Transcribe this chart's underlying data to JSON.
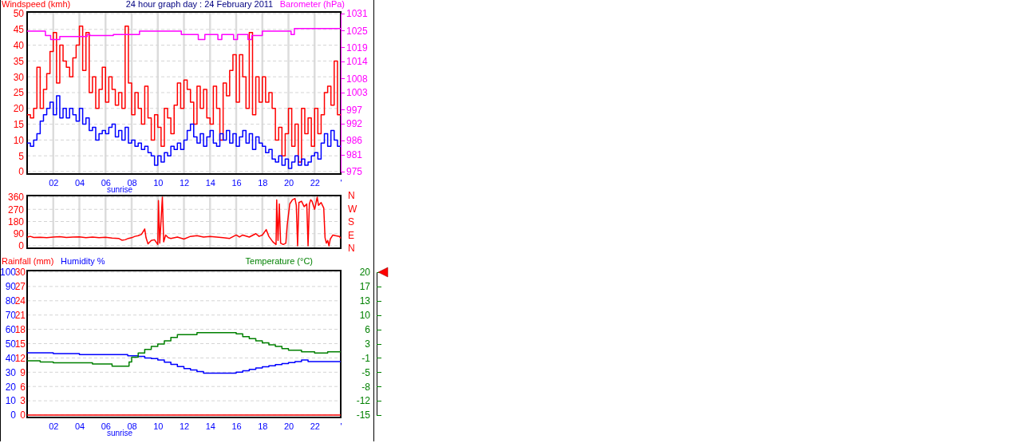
{
  "chart_data": [
    {
      "type": "step",
      "title": "24 hour graph day : 24 February 2011",
      "ylabel": "Windspeed (kmh)",
      "y2label": "Barometer (hPa)",
      "x": [
        0,
        0.25,
        0.5,
        0.75,
        1,
        1.25,
        1.5,
        1.75,
        2,
        2.25,
        2.5,
        2.75,
        3,
        3.25,
        3.5,
        3.75,
        4,
        4.25,
        4.5,
        4.75,
        5,
        5.25,
        5.5,
        5.75,
        6,
        6.25,
        6.5,
        6.75,
        7,
        7.25,
        7.5,
        7.75,
        8,
        8.25,
        8.5,
        8.75,
        9,
        9.25,
        9.5,
        9.75,
        10,
        10.25,
        10.5,
        10.75,
        11,
        11.25,
        11.5,
        11.75,
        12,
        12.25,
        12.5,
        12.75,
        13,
        13.25,
        13.5,
        13.75,
        14,
        14.25,
        14.5,
        14.75,
        15,
        15.25,
        15.5,
        15.75,
        16,
        16.25,
        16.5,
        16.75,
        17,
        17.25,
        17.5,
        17.75,
        18,
        18.25,
        18.5,
        18.75,
        19,
        19.25,
        19.5,
        19.75,
        20,
        20.25,
        20.5,
        20.75,
        21,
        21.25,
        21.5,
        21.75,
        22,
        22.25,
        22.5,
        22.75,
        23,
        23.25,
        23.5,
        23.75,
        24
      ],
      "series": [
        {
          "color": "#ff0000",
          "values": [
            18,
            17,
            20,
            33,
            20,
            26,
            31,
            38,
            44,
            28,
            40,
            35,
            33,
            30,
            36,
            40,
            46,
            32,
            44,
            25,
            30,
            20,
            26,
            33,
            22,
            30,
            26,
            21,
            25,
            20,
            46,
            28,
            18,
            25,
            20,
            15,
            27,
            17,
            10,
            18,
            14,
            8,
            20,
            17,
            12,
            21,
            28,
            20,
            29,
            26,
            22,
            15,
            27,
            20,
            26,
            17,
            15,
            27,
            20,
            10,
            28,
            24,
            32,
            37,
            22,
            37,
            30,
            20,
            44,
            18,
            30,
            22,
            30,
            22,
            25,
            20,
            10,
            14,
            5,
            12,
            20,
            8,
            15,
            3,
            20,
            12,
            17,
            8,
            20,
            12,
            18,
            25,
            27,
            21,
            35,
            18,
            18
          ]
        },
        {
          "color": "#0000ff",
          "values": [
            9,
            8,
            10,
            12,
            16,
            18,
            20,
            22,
            18,
            24,
            17,
            20,
            17,
            20,
            18,
            16,
            20,
            15,
            17,
            13,
            14,
            10,
            12,
            13,
            12,
            14,
            15,
            11,
            13,
            10,
            14,
            9,
            10,
            8,
            9,
            7,
            8,
            6,
            5,
            2,
            5,
            3,
            6,
            5,
            8,
            7,
            9,
            7,
            10,
            13,
            15,
            11,
            9,
            12,
            8,
            11,
            13,
            9,
            8,
            12,
            10,
            13,
            9,
            12,
            8,
            11,
            13,
            9,
            12,
            7,
            11,
            9,
            8,
            6,
            7,
            4,
            3,
            5,
            2,
            4,
            1,
            3,
            5,
            2,
            4,
            2,
            3,
            5,
            6,
            4,
            9,
            12,
            8,
            13,
            10,
            8,
            8
          ]
        },
        {
          "color": "#ff00ff",
          "axis": "y2",
          "x": [
            0,
            1.4,
            1.8,
            2.5,
            4.6,
            4.8,
            6.6,
            8.6,
            11.8,
            13.1,
            13.6,
            14.6,
            14.9,
            15.8,
            16.1,
            16.9,
            17.2,
            18.0,
            20.2,
            20.45,
            24
          ],
          "values": [
            1024.8,
            1023.2,
            1021.8,
            1022.9,
            1023.6,
            1023.2,
            1023.6,
            1024.8,
            1023.6,
            1021.8,
            1023.6,
            1021.8,
            1023.6,
            1021.8,
            1023.6,
            1021.8,
            1023.2,
            1024.8,
            1023.6,
            1025.7,
            1025.7
          ]
        }
      ],
      "xlim": [
        0,
        24
      ],
      "xticks": [
        {
          "value": 2,
          "label": "02"
        },
        {
          "value": 4,
          "label": "04"
        },
        {
          "value": 6,
          "label": "06"
        },
        {
          "value": 8,
          "label": "08"
        },
        {
          "value": 10,
          "label": "10"
        },
        {
          "value": 12,
          "label": "12"
        },
        {
          "value": 14,
          "label": "14"
        },
        {
          "value": 16,
          "label": "16"
        },
        {
          "value": 18,
          "label": "18"
        },
        {
          "value": 20,
          "label": "20"
        },
        {
          "value": 22,
          "label": "22"
        },
        {
          "value": 24,
          "label": "'"
        }
      ],
      "ylim": [
        0,
        50
      ],
      "yticks": [
        0,
        5,
        10,
        15,
        20,
        25,
        30,
        35,
        40,
        45,
        50
      ],
      "y2lim": [
        975,
        1031
      ],
      "y2ticks": [
        975,
        981,
        986,
        992,
        997,
        1003,
        1008,
        1014,
        1019,
        1025,
        1031
      ],
      "grid": true,
      "annotations": [
        "sunrise"
      ]
    },
    {
      "type": "line",
      "x": [
        0,
        0.25,
        0.5,
        1,
        1.5,
        2,
        2.5,
        3,
        3.5,
        4,
        4.5,
        5,
        5.5,
        6,
        6.5,
        7,
        7.25,
        7.5,
        7.75,
        8,
        8.25,
        8.5,
        8.75,
        9,
        9.1,
        9.25,
        9.5,
        9.75,
        10,
        10.05,
        10.15,
        10.35,
        10.45,
        10.6,
        10.8,
        11,
        11.5,
        12,
        12.5,
        13,
        13.5,
        14,
        14.5,
        15,
        15.5,
        16,
        16.25,
        16.5,
        17,
        17.5,
        17.75,
        18,
        18.3,
        18.5,
        18.8,
        19.05,
        19.1,
        19.2,
        19.3,
        19.4,
        19.6,
        19.8,
        19.9,
        20.1,
        20.3,
        20.5,
        20.6,
        20.7,
        20.8,
        21,
        21.2,
        21.4,
        21.5,
        21.6,
        21.7,
        21.8,
        22,
        22.05,
        22.2,
        22.3,
        22.5,
        22.7,
        22.8,
        22.9,
        23,
        23.1,
        23.2,
        23.4,
        23.6,
        23.9,
        24
      ],
      "series": [
        {
          "color": "#ff0000",
          "values": [
            65,
            70,
            62,
            63,
            60,
            65,
            68,
            62,
            65,
            67,
            60,
            65,
            60,
            63,
            58,
            55,
            42,
            45,
            55,
            60,
            70,
            75,
            85,
            125,
            60,
            15,
            40,
            45,
            10,
            335,
            20,
            360,
            30,
            80,
            60,
            55,
            65,
            50,
            70,
            75,
            65,
            70,
            65,
            60,
            55,
            80,
            65,
            80,
            65,
            90,
            70,
            80,
            120,
            70,
            30,
            10,
            340,
            40,
            310,
            20,
            10,
            20,
            150,
            310,
            340,
            350,
            300,
            0,
            320,
            330,
            290,
            310,
            0,
            310,
            340,
            330,
            270,
            290,
            360,
            300,
            320,
            280,
            60,
            20,
            40,
            0,
            50,
            80,
            75,
            70,
            55
          ]
        }
      ],
      "xlim": [
        0,
        24
      ],
      "xticks": [
        2,
        4,
        6,
        8,
        10,
        12,
        14,
        16,
        18,
        20,
        22,
        24
      ],
      "ylim": [
        0,
        360
      ],
      "yticks": [
        0,
        90,
        180,
        270,
        360
      ],
      "tick_labels": "y",
      "annotations": [
        "N",
        "W",
        "S",
        "E",
        "N"
      ],
      "grid": true
    },
    {
      "type": "step",
      "ylabel": "Humidity %",
      "y3label": "Rainfall (mm)",
      "y2label": "Temperature (°C)",
      "series": [
        {
          "color": "#0000ff",
          "x": [
            0,
            2,
            4,
            7.7,
            8.5,
            9,
            9.5,
            10,
            10.5,
            11,
            11.5,
            12,
            12.5,
            13,
            13.5,
            16,
            16.5,
            17,
            17.5,
            18,
            18.5,
            19,
            19.5,
            20,
            20.5,
            21,
            21.5,
            24
          ],
          "values": [
            43.6,
            43,
            42.3,
            41.5,
            41,
            40,
            39.5,
            38.5,
            37,
            35.5,
            34,
            32.5,
            31.5,
            30.5,
            29.3,
            30,
            31,
            32,
            33,
            33.8,
            34.5,
            35.3,
            36,
            36.8,
            37.5,
            38.5,
            37.4,
            37.4
          ]
        },
        {
          "color": "#008000",
          "axis": "y2",
          "x": [
            0,
            1,
            2,
            4,
            5,
            6.5,
            7.5,
            7.8,
            8,
            8.5,
            9,
            9.5,
            10,
            10.5,
            11,
            11.5,
            13,
            16,
            16.5,
            17,
            17.5,
            18,
            18.5,
            19,
            19.5,
            20,
            21,
            22,
            23,
            24
          ],
          "values": [
            -1.7,
            -2,
            -2.2,
            -2.2,
            -2.5,
            -3,
            -3,
            -2,
            -0.8,
            0.2,
            1.1,
            1.8,
            2.4,
            3.2,
            4,
            4.7,
            5.2,
            4.9,
            4.2,
            3.7,
            3.2,
            2.7,
            2.2,
            1.8,
            1.3,
            0.9,
            0.5,
            0.2,
            0.5,
            0.5
          ]
        },
        {
          "color": "#ff0000",
          "axis": "y3",
          "x": [
            0,
            24
          ],
          "values": [
            0,
            0
          ]
        }
      ],
      "xlim": [
        0,
        24
      ],
      "xticks": [
        {
          "value": 2,
          "label": "02"
        },
        {
          "value": 4,
          "label": "04"
        },
        {
          "value": 6,
          "label": "06"
        },
        {
          "value": 8,
          "label": "08"
        },
        {
          "value": 10,
          "label": "10"
        },
        {
          "value": 12,
          "label": "12"
        },
        {
          "value": 14,
          "label": "14"
        },
        {
          "value": 16,
          "label": "16"
        },
        {
          "value": 18,
          "label": "18"
        },
        {
          "value": 20,
          "label": "20"
        },
        {
          "value": 22,
          "label": "22"
        },
        {
          "value": 24,
          "label": "'"
        }
      ],
      "ylim": [
        0,
        100
      ],
      "yticks": [
        0,
        10,
        20,
        30,
        40,
        50,
        60,
        70,
        80,
        90,
        100
      ],
      "y3lim": [
        0,
        30
      ],
      "y3ticks": [
        0,
        3,
        6,
        9,
        12,
        15,
        18,
        21,
        24,
        27,
        30
      ],
      "y2lim": [
        -15,
        20
      ],
      "y2ticks": [
        -15,
        {
          "value": -11.5,
          "label": "-12"
        },
        -8,
        {
          "value": -4.5,
          "label": "-5"
        },
        -1,
        {
          "value": 2.5,
          "label": "3"
        },
        6,
        {
          "value": 9.5,
          "label": "10"
        },
        13,
        {
          "value": 16.5,
          "label": "17"
        },
        20
      ],
      "grid": "y",
      "annotations": [
        "sunrise"
      ]
    }
  ]
}
